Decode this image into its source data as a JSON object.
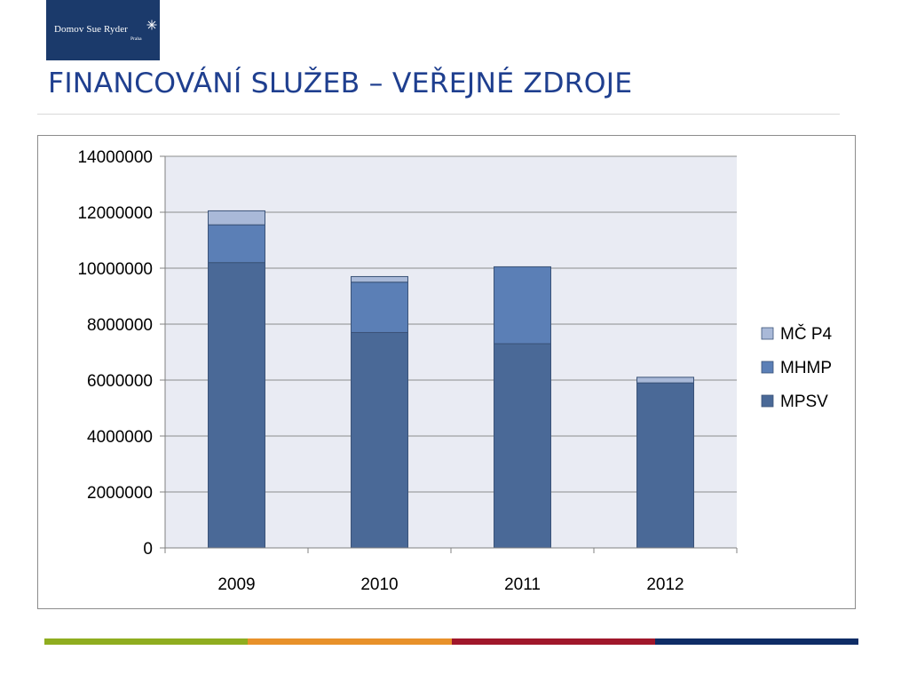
{
  "logo": {
    "text": "Domov Sue Ryder",
    "subtext": "Praha"
  },
  "title": "FINANCOVÁNÍ SLUŽEB – VEŘEJNÉ ZDROJE",
  "colors": {
    "title": "#1f3f8f",
    "logo_background": "#1b3a6b",
    "plot_background": "#e9ebf3",
    "bottom_stripe": [
      "#8fad1f",
      "#e8912a",
      "#a0172b",
      "#0f2d66"
    ]
  },
  "chart_data": {
    "type": "bar",
    "stacked": true,
    "categories": [
      "2009",
      "2010",
      "2011",
      "2012"
    ],
    "series": [
      {
        "name": "MPSV",
        "color": "#4a6997",
        "values": [
          10200000,
          7700000,
          7300000,
          5900000
        ]
      },
      {
        "name": "MHMP",
        "color": "#5b7fb6",
        "values": [
          1350000,
          1800000,
          2750000,
          0
        ]
      },
      {
        "name": "MČ P4",
        "color": "#a9b9d8",
        "values": [
          500000,
          200000,
          0,
          200000
        ]
      }
    ],
    "ylim": [
      0,
      14000000
    ],
    "yticks": [
      "0",
      "2000000",
      "4000000",
      "6000000",
      "8000000",
      "10000000",
      "12000000",
      "14000000"
    ],
    "grid": true,
    "legend_position": "right",
    "legend_order": [
      "MČ P4",
      "MHMP",
      "MPSV"
    ]
  }
}
